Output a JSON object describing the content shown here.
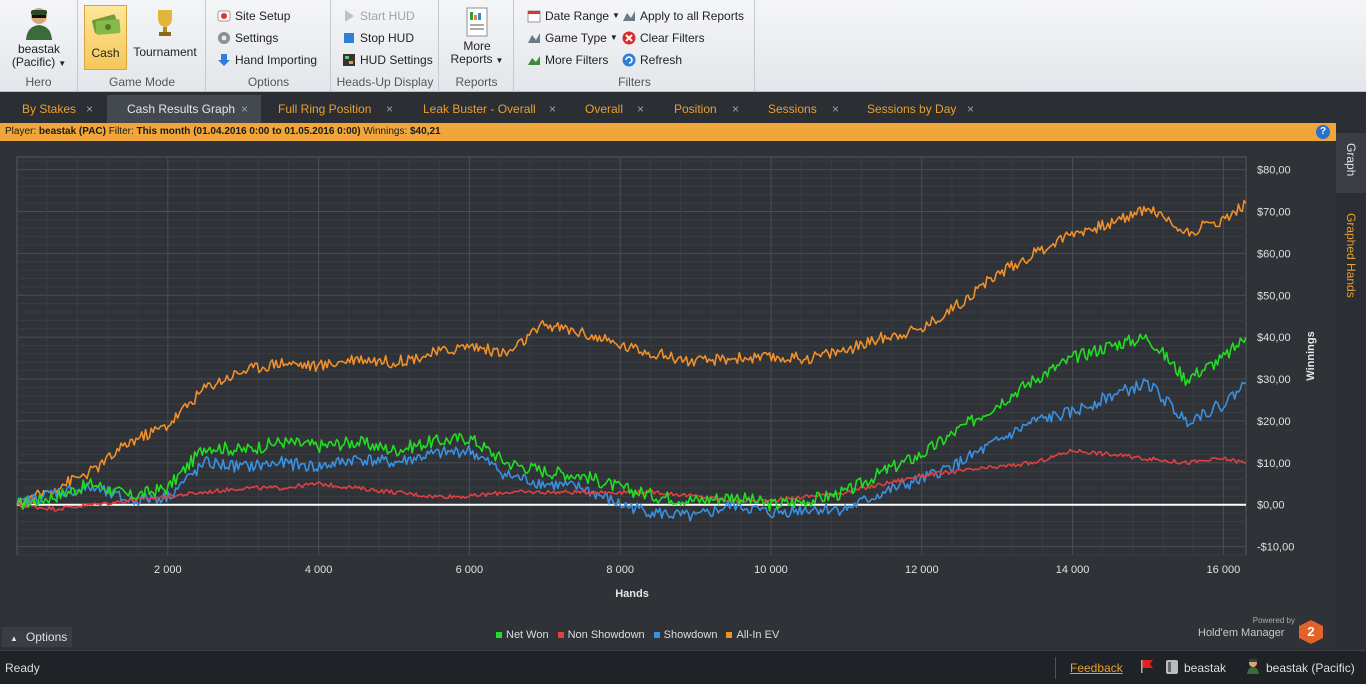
{
  "ribbon": {
    "hero": {
      "player_line1": "beastak",
      "player_line2": "(Pacific)",
      "label": "Hero"
    },
    "game_mode": {
      "cash": "Cash",
      "tournament": "Tournament",
      "label": "Game Mode"
    },
    "options": {
      "site_setup": "Site Setup",
      "settings": "Settings",
      "hand_importing": "Hand Importing",
      "label": "Options"
    },
    "hud": {
      "start_hud": "Start HUD",
      "stop_hud": "Stop HUD",
      "hud_settings": "HUD Settings",
      "label": "Heads-Up Display"
    },
    "reports": {
      "more_line1": "More",
      "more_line2": "Reports",
      "label": "Reports"
    },
    "filters": {
      "date_range": "Date Range",
      "game_type": "Game Type",
      "more_filters": "More Filters",
      "apply_all": "Apply to all Reports",
      "clear_filters": "Clear Filters",
      "refresh": "Refresh",
      "label": "Filters"
    }
  },
  "tabs": [
    "By Stakes",
    "Cash Results Graph",
    "Full Ring Position",
    "Leak Buster - Overall",
    "Overall",
    "Position",
    "Sessions",
    "Sessions by Day"
  ],
  "filterbar": {
    "player_label": "Player:",
    "player": "beastak (PAC)",
    "filter_label": "Filter:",
    "filter": "This month (01.04.2016 0:00 to 01.05.2016 0:00)",
    "winnings_label": "Winnings:",
    "winnings": "$40,21"
  },
  "side_tabs": {
    "graph": "Graph",
    "graphed_hands": "Graphed Hands"
  },
  "options_label": "Options",
  "powered_by": {
    "line1": "Powered by",
    "line2": "Hold'em Manager",
    "badge": "2"
  },
  "status": {
    "ready": "Ready",
    "feedback": "Feedback",
    "site_user": "beastak",
    "hero": "beastak (Pacific)"
  },
  "colors": {
    "accent": "#e8a030",
    "net_won": "#22dd22",
    "non_showdown": "#e04040",
    "showdown": "#3a90e0",
    "allin_ev": "#f0902a"
  },
  "chart_data": {
    "type": "line",
    "xlabel": "Hands",
    "ylabel": "Winnings",
    "xlim": [
      0,
      16300
    ],
    "ylim": [
      -12,
      83
    ],
    "x_ticks": [
      2000,
      4000,
      6000,
      8000,
      10000,
      12000,
      14000,
      16000
    ],
    "x_tick_labels": [
      "2 000",
      "4 000",
      "6 000",
      "8 000",
      "10 000",
      "12 000",
      "14 000",
      "16 000"
    ],
    "y_ticks": [
      -10,
      0,
      10,
      20,
      30,
      40,
      50,
      60,
      70,
      80
    ],
    "y_tick_labels": [
      "-$10,00",
      "$0,00",
      "$10,00",
      "$20,00",
      "$30,00",
      "$40,00",
      "$50,00",
      "$60,00",
      "$70,00",
      "$80,00"
    ],
    "grid": true,
    "legend_position": "bottom-center",
    "x": [
      0,
      500,
      1000,
      1500,
      2000,
      2500,
      3000,
      3500,
      4000,
      4500,
      5000,
      5500,
      6000,
      6500,
      7000,
      7500,
      8000,
      8500,
      9000,
      9500,
      10000,
      10500,
      11000,
      11500,
      12000,
      12500,
      13000,
      13500,
      14000,
      14500,
      15000,
      15500,
      16000,
      16300
    ],
    "series": [
      {
        "name": "Net Won",
        "color": "#22dd22",
        "values": [
          0,
          2,
          5,
          2,
          4,
          14,
          13,
          15,
          14,
          15,
          13,
          15,
          16,
          10,
          8,
          7,
          4,
          2,
          1,
          2,
          0,
          1,
          3,
          8,
          12,
          18,
          24,
          30,
          35,
          38,
          40,
          30,
          35,
          40
        ]
      },
      {
        "name": "Non Showdown",
        "color": "#e04040",
        "values": [
          0,
          -1,
          0,
          1,
          2,
          3,
          4,
          4,
          5,
          4,
          3,
          2,
          2,
          3,
          3,
          3,
          3,
          3,
          2,
          1,
          1,
          2,
          3,
          5,
          7,
          8,
          9,
          10,
          13,
          12,
          11,
          10,
          11,
          10
        ]
      },
      {
        "name": "Showdown",
        "color": "#3a90e0",
        "values": [
          0,
          3,
          4,
          1,
          2,
          10,
          9,
          10,
          9,
          11,
          10,
          12,
          13,
          7,
          5,
          4,
          0,
          -2,
          -3,
          0,
          -2,
          -1,
          -1,
          3,
          6,
          10,
          15,
          20,
          22,
          26,
          29,
          20,
          24,
          29
        ]
      },
      {
        "name": "All-In EV",
        "color": "#f0902a",
        "values": [
          0,
          4,
          8,
          15,
          19,
          28,
          32,
          34,
          33,
          35,
          34,
          36,
          38,
          36,
          43,
          41,
          38,
          36,
          34,
          35,
          35,
          35,
          37,
          40,
          42,
          48,
          55,
          60,
          65,
          67,
          71,
          65,
          68,
          72
        ]
      }
    ]
  }
}
